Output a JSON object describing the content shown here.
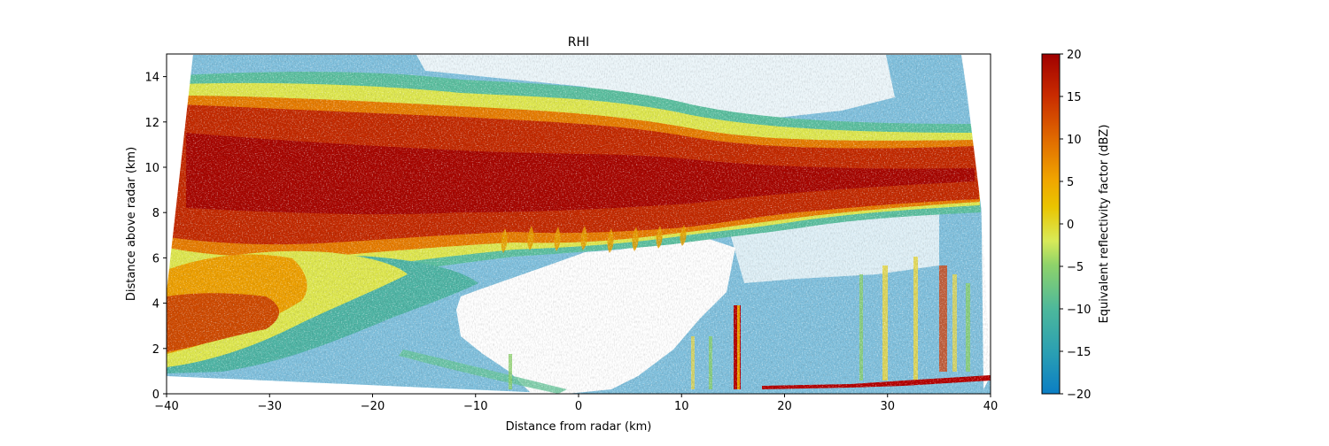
{
  "chart_data": {
    "type": "heatmap",
    "title": "RHI",
    "xlabel": "Distance from radar (km)",
    "ylabel": "Distance above radar (km)",
    "xlim": [
      -40,
      40
    ],
    "ylim": [
      0,
      15
    ],
    "xticks": [
      -40,
      -30,
      -20,
      -10,
      0,
      10,
      20,
      30,
      40
    ],
    "yticks": [
      0,
      2,
      4,
      6,
      8,
      10,
      12,
      14
    ],
    "grid": false,
    "colorbar": {
      "label": "Equivalent reflectivity factor (dBZ)",
      "range": [
        -20,
        20
      ],
      "ticks": [
        -20,
        -15,
        -10,
        -5,
        0,
        5,
        10,
        15,
        20
      ],
      "colors": [
        "#0b7ec4",
        "#2a9fb3",
        "#4db89b",
        "#8fd36a",
        "#d8ea58",
        "#eac400",
        "#f0a500",
        "#e06a00",
        "#c82a00",
        "#a00000"
      ]
    },
    "features": [
      {
        "name": "upper cloud band",
        "x_range": [
          -40,
          40
        ],
        "bottom_km": 8,
        "top_km": 12.5,
        "peak_dbz": 18
      },
      {
        "name": "lower-left precipitation layer",
        "x_range": [
          -40,
          -10
        ],
        "bottom_km": 1,
        "top_km": 6,
        "peak_dbz": 15
      },
      {
        "name": "fall streaks",
        "x_range": [
          -40,
          20
        ],
        "height_km": [
          6.5,
          7.8
        ],
        "dbz": 5
      },
      {
        "name": "surface clutter / convective columns",
        "x_range": [
          10,
          40
        ],
        "height_km": [
          0,
          4
        ],
        "dbz": -10
      }
    ]
  }
}
